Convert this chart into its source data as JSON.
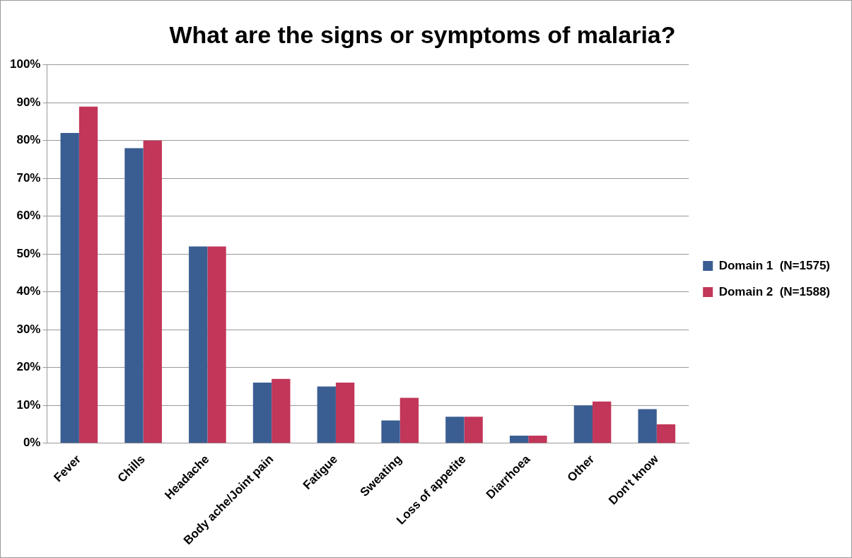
{
  "chart_data": {
    "type": "bar",
    "title": "What are the signs or symptoms of malaria?",
    "categories": [
      "Fever",
      "Chills",
      "Headache",
      "Body ache/Joint pain",
      "Fatigue",
      "Sweating",
      "Loss of appetite",
      "Diarrhoea",
      "Other",
      "Don't know"
    ],
    "series": [
      {
        "name": "Domain 1  (N=1575)",
        "color": "#3b5e92",
        "values": [
          82,
          78,
          52,
          16,
          15,
          6,
          7,
          2,
          10,
          9
        ]
      },
      {
        "name": "Domain 2  (N=1588)",
        "color": "#c2365a",
        "values": [
          89,
          80,
          52,
          17,
          16,
          12,
          7,
          2,
          11,
          5
        ]
      }
    ],
    "ylim": [
      0,
      100
    ],
    "yticks": [
      {
        "value": 0,
        "label": "0%"
      },
      {
        "value": 10,
        "label": "10%"
      },
      {
        "value": 20,
        "label": "20%"
      },
      {
        "value": 30,
        "label": "30%"
      },
      {
        "value": 40,
        "label": "40%"
      },
      {
        "value": 50,
        "label": "50%"
      },
      {
        "value": 60,
        "label": "60%"
      },
      {
        "value": 70,
        "label": "70%"
      },
      {
        "value": 80,
        "label": "80%"
      },
      {
        "value": 90,
        "label": "90%"
      },
      {
        "value": 100,
        "label": "100%"
      }
    ],
    "grid": "y",
    "legend": "right"
  }
}
